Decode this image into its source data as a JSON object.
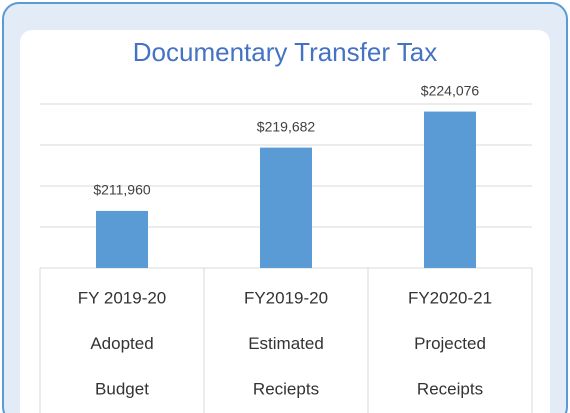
{
  "chart_data": {
    "type": "bar",
    "title": "Documentary Transfer Tax",
    "categories": [
      [
        "FY 2019-20",
        "Adopted",
        "Budget"
      ],
      [
        "FY2019-20",
        "Estimated",
        "Reciepts"
      ],
      [
        "FY2020-21",
        "Projected",
        "Receipts"
      ]
    ],
    "values": [
      211960,
      219682,
      224076
    ],
    "value_labels": [
      "$211,960",
      "$219,682",
      "$224,076"
    ],
    "color": "#5b9bd5",
    "ylim": [
      205000,
      225000
    ],
    "yticks": [
      205000,
      210000,
      215000,
      220000,
      225000
    ],
    "grid": true
  }
}
